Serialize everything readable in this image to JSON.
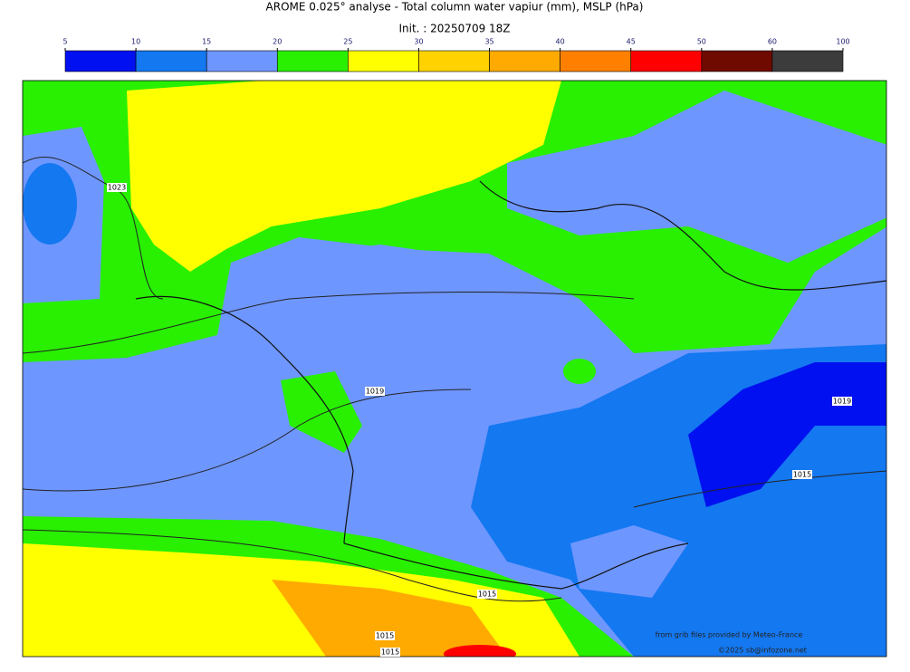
{
  "header": {
    "title": "AROME 0.025° analyse - Total column water vapiur (mm), MSLP (hPa)",
    "subtitle": "Init. : 20250709 18Z"
  },
  "colorbar": {
    "ticks": [
      5,
      10,
      15,
      20,
      25,
      30,
      35,
      40,
      45,
      50,
      60,
      100
    ],
    "colors": [
      "#0010f0",
      "#1478f0",
      "#6e96ff",
      "#28f000",
      "#ffff00",
      "#ffd200",
      "#ffaa00",
      "#ff8000",
      "#ff0000",
      "#6e0a00",
      "#3c3c3c"
    ]
  },
  "isobar_labels": [
    1023,
    1019,
    1019,
    1015,
    1015,
    1015,
    1015
  ],
  "credits": [
    "from grib files provided by Meteo-France",
    "©2025 sb@infozone.net"
  ]
}
